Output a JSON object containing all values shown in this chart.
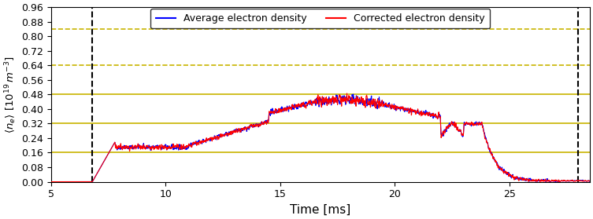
{
  "xlim": [
    5,
    28.5
  ],
  "ylim": [
    0.0,
    0.96
  ],
  "yticks": [
    0.0,
    0.08,
    0.16,
    0.24,
    0.32,
    0.4,
    0.48,
    0.56,
    0.64,
    0.72,
    0.8,
    0.88,
    0.96
  ],
  "xticks": [
    5,
    10,
    15,
    20,
    25
  ],
  "xlabel": "Time [ms]",
  "ylabel": "$\\langle n_e \\rangle$ [$10^{19}\\,m^{-3}$]",
  "hlines_solid": [
    0.16,
    0.32,
    0.48
  ],
  "hlines_dashed": [
    0.64,
    0.84
  ],
  "hline_solid_color": "#c8b400",
  "hline_dashed_color": "#c8b400",
  "vlines": [
    6.8,
    28.0
  ],
  "vline_color": "black",
  "legend_labels": [
    "Average electron density",
    "Corrected electron density"
  ],
  "legend_colors": [
    "blue",
    "red"
  ],
  "line_color_avg": "blue",
  "line_color_corr": "red",
  "figsize": [
    7.53,
    2.79
  ],
  "dpi": 100,
  "bg_color": "white"
}
